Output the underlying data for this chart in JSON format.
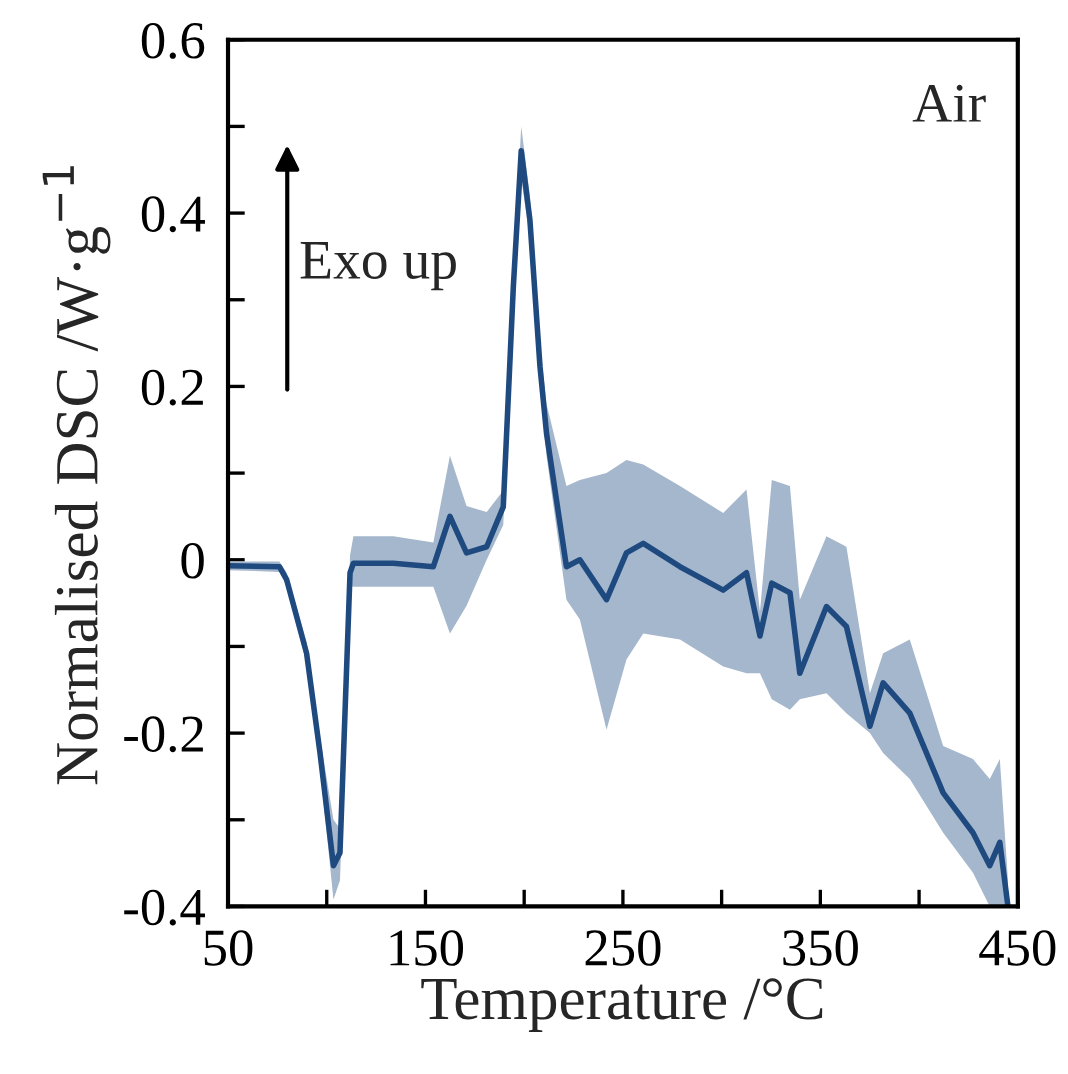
{
  "chart_data": {
    "type": "line",
    "xlabel": "Temperature /°C",
    "ylabel": "Normalised DSC /W·g$^{−1}$",
    "annotations": [
      "Air",
      "Exo up"
    ],
    "x": [
      50,
      76,
      79.7,
      89.8,
      96.6,
      103.4,
      106.7,
      111.8,
      113.5,
      133.7,
      154,
      162.4,
      170.8,
      181,
      189.4,
      194.5,
      198.5,
      202.9,
      208,
      211.3,
      221.4,
      228.2,
      241.7,
      251.8,
      260.3,
      278.9,
      300.8,
      312.6,
      319.4,
      325.4,
      334.6,
      339.6,
      353.1,
      363.2,
      375.1,
      381.8,
      395.3,
      412.2,
      427.3,
      435.8,
      440.9,
      445
    ],
    "series": [
      {
        "color": "#1f4a80",
        "values": [
          -0.007,
          -0.008,
          -0.023,
          -0.108,
          -0.223,
          -0.353,
          -0.338,
          -0.015,
          -0.004,
          -0.004,
          -0.008,
          0.05,
          0.008,
          0.015,
          0.061,
          0.315,
          0.472,
          0.392,
          0.223,
          0.146,
          -0.008,
          0,
          -0.046,
          0.008,
          0.019,
          -0.008,
          -0.035,
          -0.015,
          -0.088,
          -0.027,
          -0.038,
          -0.131,
          -0.054,
          -0.077,
          -0.192,
          -0.142,
          -0.177,
          -0.269,
          -0.315,
          -0.353,
          -0.326,
          -0.4
        ],
        "upper": [
          -0.002,
          -0.002,
          -0.015,
          -0.095,
          -0.205,
          -0.3,
          -0.31,
          0.005,
          0.027,
          0.027,
          0.02,
          0.12,
          0.062,
          0.055,
          0.08,
          0.33,
          0.5,
          0.42,
          0.25,
          0.18,
          0.085,
          0.092,
          0.1,
          0.115,
          0.11,
          0.085,
          0.054,
          0.081,
          -0.06,
          0.092,
          0.085,
          -0.046,
          0.027,
          0.015,
          -0.154,
          -0.108,
          -0.092,
          -0.215,
          -0.23,
          -0.253,
          -0.23,
          -0.369
        ],
        "lower": [
          -0.012,
          -0.014,
          -0.03,
          -0.12,
          -0.24,
          -0.392,
          -0.37,
          -0.03,
          -0.031,
          -0.031,
          -0.031,
          -0.085,
          -0.053,
          0,
          0.04,
          0.3,
          0.44,
          0.37,
          0.2,
          0.12,
          -0.046,
          -0.069,
          -0.196,
          -0.115,
          -0.085,
          -0.092,
          -0.123,
          -0.131,
          -0.131,
          -0.161,
          -0.173,
          -0.161,
          -0.154,
          -0.177,
          -0.2,
          -0.223,
          -0.253,
          -0.315,
          -0.361,
          -0.4,
          -0.4,
          -0.4
        ]
      }
    ],
    "xlim": [
      50,
      450
    ],
    "xticks": [
      50,
      {
        "value": 100,
        "label": null
      },
      150,
      {
        "value": 200,
        "label": null
      },
      250,
      {
        "value": 300,
        "label": null
      },
      350,
      {
        "value": 400,
        "label": null
      },
      450
    ],
    "ylim": [
      -0.4,
      0.6
    ],
    "yticks": [
      -0.4,
      {
        "value": -0.3,
        "label": null
      },
      -0.2,
      {
        "value": -0.1,
        "label": null
      },
      0,
      {
        "value": 0.1,
        "label": null
      },
      0.2,
      {
        "value": 0.3,
        "label": null
      },
      0.4,
      {
        "value": 0.5,
        "label": null
      },
      0.6
    ],
    "grid": false,
    "legend": false,
    "marker": "none",
    "line_style": "solid"
  }
}
